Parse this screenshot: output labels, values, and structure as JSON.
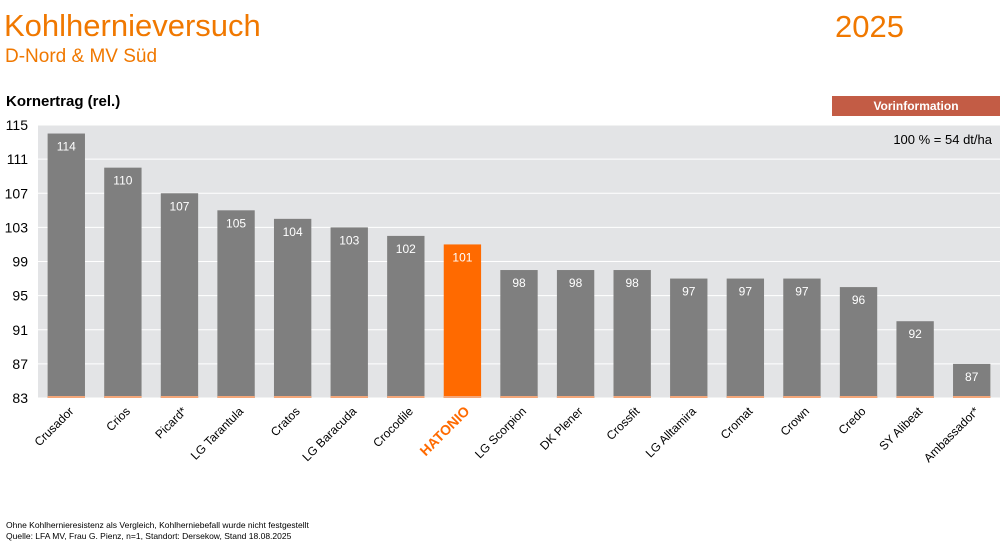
{
  "header": {
    "title": "Kohlhernieversuch",
    "subtitle": "D-Nord & MV Süd",
    "year": "2025"
  },
  "badge": "Vorinformation",
  "footnotes": [
    "Ohne Kohlhernieresistenz als Vergleich, Kohlherniebefall wurde nicht festgestellt",
    "Quelle: LFA MV, Frau G. Pienz, n=1, Standort: Dersekow, Stand 18.08.2025"
  ],
  "colors": {
    "accent": "#f07800",
    "highlight_bar": "#ff6a00",
    "bar": "#7f7f7f",
    "plot_bg": "#e3e4e6",
    "badge": "#c35c45"
  },
  "chart_data": {
    "type": "bar",
    "ylabel": "Kornertrag (rel.)",
    "annotation": "100 % = 54 dt/ha",
    "ylim": [
      83,
      115
    ],
    "yticks": [
      83,
      87,
      91,
      95,
      99,
      103,
      107,
      111,
      115
    ],
    "grid": true,
    "categories": [
      "Crusador",
      "Crios",
      "Picard*",
      "LG Tarantula",
      "Cratos",
      "LG Baracuda",
      "Crocodile",
      "HATONIO",
      "LG Scorpion",
      "DK Plener",
      "Crossfit",
      "LG Alltamira",
      "Cromat",
      "Crown",
      "Credo",
      "SY Alibeat",
      "Ambassador*"
    ],
    "values": [
      114,
      110,
      107,
      105,
      104,
      103,
      102,
      101,
      98,
      98,
      98,
      97,
      97,
      97,
      96,
      92,
      87
    ],
    "highlight": "HATONIO"
  }
}
